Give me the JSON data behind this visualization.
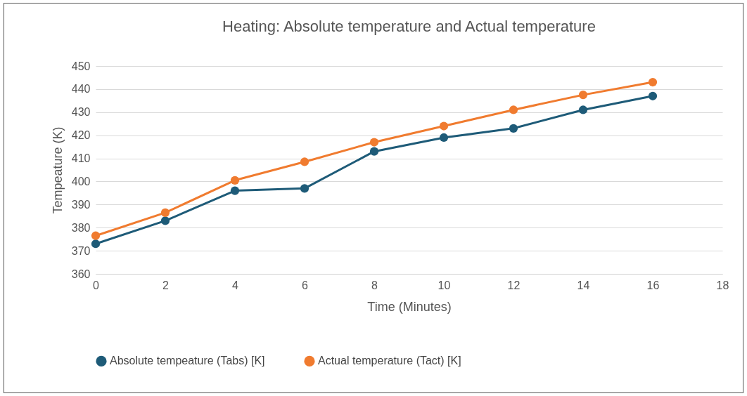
{
  "chart_data": {
    "type": "line",
    "title": "Heating: Absolute temperature and Actual temperature",
    "xlabel": "Time (Minutes)",
    "ylabel": "Tempeature (K)",
    "x": [
      0,
      2,
      4,
      6,
      8,
      10,
      12,
      14,
      16
    ],
    "series": [
      {
        "name": "Absolute tempeature (Tabs) [K]",
        "color": "#1e5b78",
        "values": [
          373,
          383,
          396,
          397,
          413,
          419,
          423,
          431,
          437
        ]
      },
      {
        "name": "Actual temperature (Tact) [K]",
        "color": "#f07b2f",
        "values": [
          376.5,
          386.5,
          400.5,
          408.5,
          417,
          424,
          431,
          437.5,
          443
        ]
      }
    ],
    "xlim": [
      0,
      18
    ],
    "xticks": [
      0,
      2,
      4,
      6,
      8,
      10,
      12,
      14,
      16,
      18
    ],
    "ylim": [
      360,
      450
    ],
    "yticks": [
      360,
      370,
      380,
      390,
      400,
      410,
      420,
      430,
      440,
      450
    ],
    "grid": "y",
    "legend": "bottom",
    "marker": "circle",
    "line_style": "solid"
  }
}
